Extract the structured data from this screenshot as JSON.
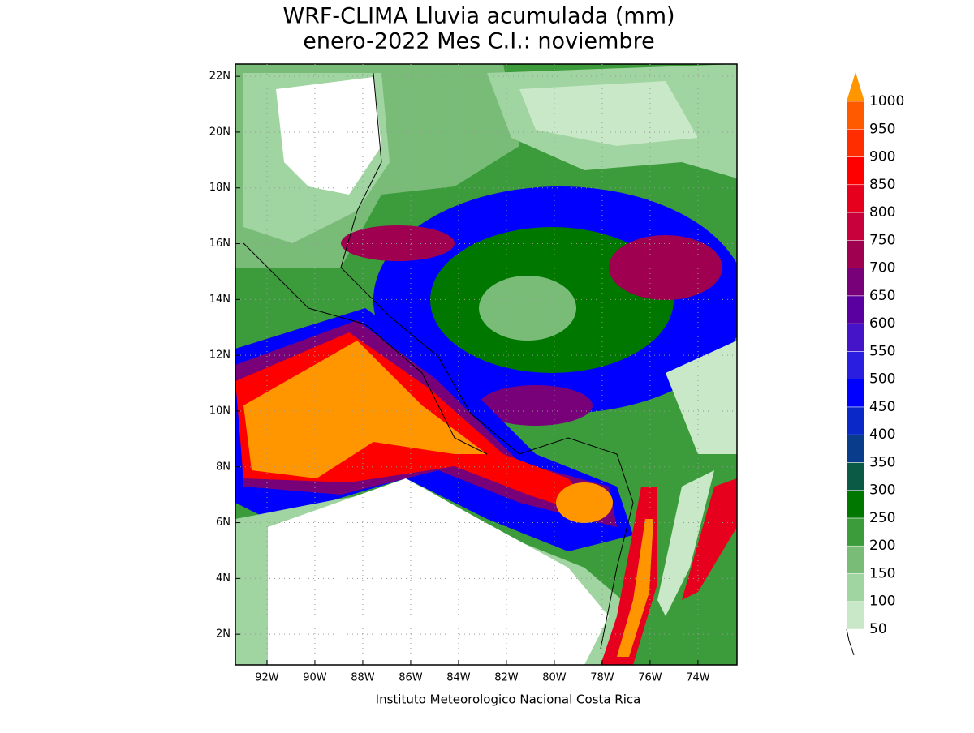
{
  "map": {
    "title": [
      "WRF-CLIMA Lluvia acumulada (mm)",
      "enero-2022 Mes C.I.: noviembre"
    ],
    "footer": "Instituto Meteorologico Nacional Costa Rica",
    "xlim": [
      -93.32,
      -72.37
    ],
    "ylim": [
      0.9,
      22.44
    ],
    "xticks": [
      {
        "value": -92,
        "label": "92W"
      },
      {
        "value": -90,
        "label": "90W"
      },
      {
        "value": -88,
        "label": "88W"
      },
      {
        "value": -86,
        "label": "86W"
      },
      {
        "value": -84,
        "label": "84W"
      },
      {
        "value": -82,
        "label": "82W"
      },
      {
        "value": -80,
        "label": "80W"
      },
      {
        "value": -78,
        "label": "78W"
      },
      {
        "value": -76,
        "label": "76W"
      },
      {
        "value": -74,
        "label": "74W"
      }
    ],
    "yticks": [
      {
        "value": 2,
        "label": "2N"
      },
      {
        "value": 4,
        "label": "4N"
      },
      {
        "value": 6,
        "label": "6N"
      },
      {
        "value": 8,
        "label": "8N"
      },
      {
        "value": 10,
        "label": "10N"
      },
      {
        "value": 12,
        "label": "12N"
      },
      {
        "value": 14,
        "label": "14N"
      },
      {
        "value": 16,
        "label": "16N"
      },
      {
        "value": 18,
        "label": "18N"
      },
      {
        "value": 20,
        "label": "20N"
      },
      {
        "value": 22,
        "label": "22N"
      }
    ],
    "grid": true,
    "colorbar": {
      "levels": [
        50,
        100,
        150,
        200,
        250,
        300,
        350,
        400,
        450,
        500,
        550,
        600,
        650,
        700,
        750,
        800,
        850,
        900,
        950,
        1000
      ],
      "colors": [
        "#c8e8c8",
        "#a0d4a0",
        "#78bc78",
        "#3c9c3c",
        "#007800",
        "#0a5a46",
        "#0a3c8c",
        "#0a28c8",
        "#0000ff",
        "#2a1ee0",
        "#4614c8",
        "#5a00a0",
        "#780078",
        "#a00050",
        "#c8003c",
        "#e6001e",
        "#ff0000",
        "#ff2d00",
        "#ff5a00",
        "#ff9600"
      ]
    }
  }
}
